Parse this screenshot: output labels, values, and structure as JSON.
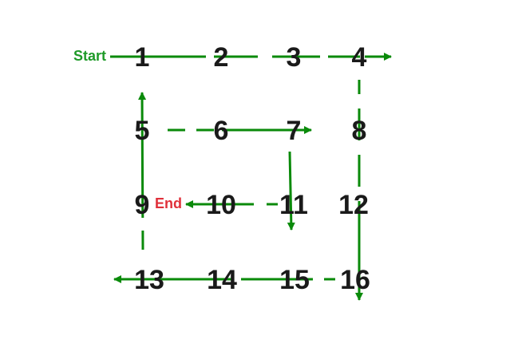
{
  "labels": {
    "start": "Start",
    "end": "End"
  },
  "colors": {
    "path": "#0a8a0a",
    "start_text": "#1e9a28",
    "end_text": "#e0303a",
    "number": "#1a1a1a",
    "background": "#ffffff"
  },
  "grid": {
    "rows": [
      [
        "1",
        "2",
        "3",
        "4"
      ],
      [
        "5",
        "6",
        "7",
        "8"
      ],
      [
        "9",
        "10",
        "11",
        "12"
      ],
      [
        "13",
        "14",
        "15",
        "16"
      ]
    ]
  },
  "traversal": [
    "1",
    "2",
    "3",
    "4",
    "8",
    "12",
    "16",
    "15",
    "14",
    "13",
    "9",
    "5",
    "6",
    "7",
    "11",
    "10"
  ]
}
